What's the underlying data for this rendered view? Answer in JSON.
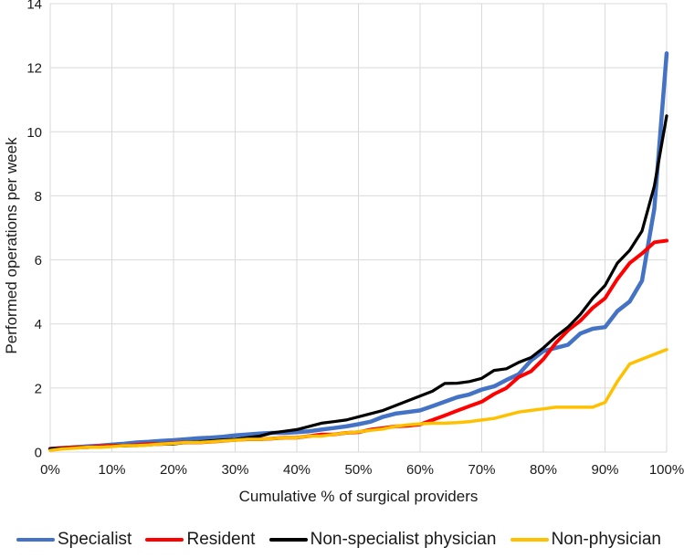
{
  "chart_data": {
    "type": "line",
    "title": "",
    "xlabel": "Cumulative % of surgical providers",
    "ylabel": "Performed operations per week",
    "xlim": [
      0,
      100
    ],
    "ylim": [
      0,
      14
    ],
    "grid": true,
    "grid_color": "#D9D9D9",
    "legend_position": "bottom",
    "x_ticks": [
      0,
      10,
      20,
      30,
      40,
      50,
      60,
      70,
      80,
      90,
      100
    ],
    "x_tick_labels": [
      "0%",
      "10%",
      "20%",
      "30%",
      "40%",
      "50%",
      "60%",
      "70%",
      "80%",
      "90%",
      "100%"
    ],
    "y_ticks": [
      0,
      2,
      4,
      6,
      8,
      10,
      12,
      14
    ],
    "y_tick_labels": [
      "0",
      "2",
      "4",
      "6",
      "8",
      "10",
      "12",
      "14"
    ],
    "x": [
      0,
      2,
      4,
      6,
      8,
      10,
      12,
      14,
      16,
      18,
      20,
      22,
      24,
      26,
      28,
      30,
      32,
      34,
      36,
      38,
      40,
      42,
      44,
      46,
      48,
      50,
      52,
      54,
      56,
      58,
      60,
      62,
      64,
      66,
      68,
      70,
      72,
      74,
      76,
      78,
      80,
      82,
      84,
      86,
      88,
      90,
      92,
      94,
      96,
      98,
      100
    ],
    "series": [
      {
        "name": "Specialist",
        "color": "#4472C4",
        "values": [
          0.1,
          0.12,
          0.15,
          0.18,
          0.2,
          0.23,
          0.26,
          0.3,
          0.32,
          0.35,
          0.37,
          0.4,
          0.43,
          0.45,
          0.48,
          0.52,
          0.55,
          0.58,
          0.6,
          0.6,
          0.62,
          0.65,
          0.7,
          0.75,
          0.8,
          0.87,
          0.95,
          1.1,
          1.2,
          1.25,
          1.3,
          1.43,
          1.57,
          1.71,
          1.8,
          1.95,
          2.05,
          2.25,
          2.43,
          2.86,
          3.15,
          3.25,
          3.35,
          3.7,
          3.85,
          3.9,
          4.4,
          4.7,
          5.35,
          7.6,
          12.45
        ]
      },
      {
        "name": "Resident",
        "color": "#FF0000",
        "values": [
          0.1,
          0.13,
          0.15,
          0.15,
          0.18,
          0.2,
          0.2,
          0.22,
          0.25,
          0.25,
          0.28,
          0.3,
          0.3,
          0.32,
          0.35,
          0.38,
          0.4,
          0.4,
          0.42,
          0.45,
          0.45,
          0.5,
          0.55,
          0.55,
          0.6,
          0.62,
          0.7,
          0.75,
          0.8,
          0.82,
          0.86,
          1.0,
          1.14,
          1.29,
          1.43,
          1.57,
          1.81,
          2.0,
          2.34,
          2.52,
          2.9,
          3.4,
          3.8,
          4.1,
          4.5,
          4.8,
          5.4,
          5.9,
          6.2,
          6.55,
          6.6
        ]
      },
      {
        "name": "Non-specialist physician",
        "color": "#000000",
        "values": [
          0.1,
          0.12,
          0.13,
          0.15,
          0.15,
          0.18,
          0.2,
          0.2,
          0.22,
          0.25,
          0.25,
          0.3,
          0.32,
          0.35,
          0.38,
          0.4,
          0.45,
          0.5,
          0.6,
          0.65,
          0.7,
          0.8,
          0.9,
          0.95,
          1.0,
          1.1,
          1.2,
          1.3,
          1.45,
          1.6,
          1.75,
          1.9,
          2.14,
          2.15,
          2.2,
          2.3,
          2.55,
          2.6,
          2.8,
          2.95,
          3.25,
          3.6,
          3.9,
          4.3,
          4.8,
          5.2,
          5.9,
          6.3,
          6.9,
          8.3,
          10.5
        ]
      },
      {
        "name": "Non-physician",
        "color": "#FFC000",
        "values": [
          0.05,
          0.1,
          0.12,
          0.15,
          0.15,
          0.17,
          0.2,
          0.2,
          0.22,
          0.25,
          0.27,
          0.3,
          0.3,
          0.32,
          0.35,
          0.37,
          0.4,
          0.4,
          0.42,
          0.45,
          0.45,
          0.5,
          0.5,
          0.55,
          0.6,
          0.63,
          0.68,
          0.72,
          0.8,
          0.85,
          0.88,
          0.9,
          0.9,
          0.92,
          0.95,
          1.0,
          1.05,
          1.15,
          1.25,
          1.3,
          1.35,
          1.4,
          1.4,
          1.4,
          1.4,
          1.55,
          2.2,
          2.75,
          2.9,
          3.05,
          3.2
        ]
      }
    ],
    "text_color": "#1a1a1a"
  }
}
